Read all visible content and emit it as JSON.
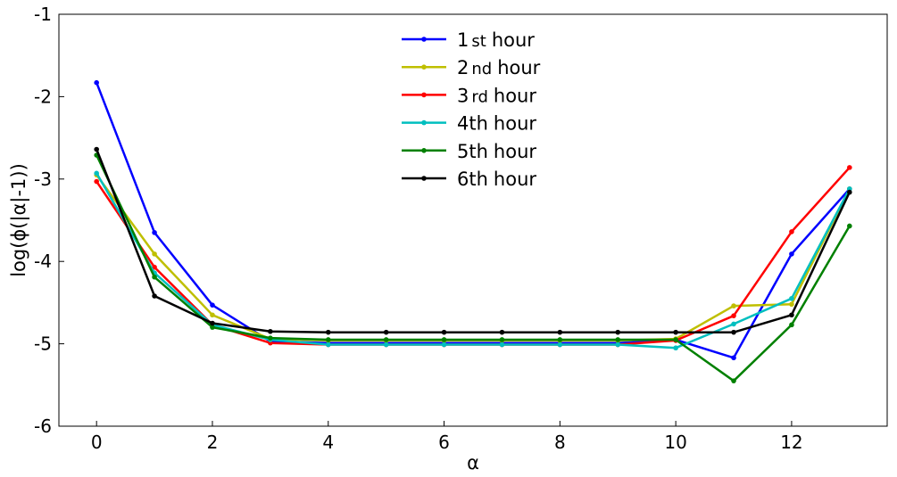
{
  "chart_data": {
    "type": "line",
    "title": "",
    "xlabel": "α",
    "ylabel": "log(ϕ(|α|-1))",
    "xlim": [
      -0.65,
      13.65
    ],
    "ylim": [
      -6,
      -1
    ],
    "xticks": [
      0,
      2,
      4,
      6,
      8,
      10,
      12
    ],
    "yticks": [
      -6,
      -5,
      -4,
      -3,
      -2,
      -1
    ],
    "grid": false,
    "legend_position": "top-center",
    "x": [
      0,
      1,
      2,
      3,
      4,
      5,
      6,
      7,
      8,
      9,
      10,
      11,
      12,
      13
    ],
    "series": [
      {
        "name": "1st hour",
        "label_main": "1",
        "label_sup": "st",
        "label_rest": "hour",
        "color": "#0000ff",
        "values": [
          -1.83,
          -3.65,
          -4.53,
          -4.97,
          -4.99,
          -4.99,
          -4.99,
          -4.99,
          -4.99,
          -4.99,
          -4.95,
          -5.17,
          -3.91,
          -3.12
        ]
      },
      {
        "name": "2nd hour",
        "label_main": "2",
        "label_sup": "nd",
        "label_rest": "hour",
        "color": "#bfbf00",
        "values": [
          -2.95,
          -3.91,
          -4.65,
          -4.94,
          -4.96,
          -4.96,
          -4.96,
          -4.96,
          -4.96,
          -4.96,
          -4.94,
          -4.54,
          -4.52,
          -3.12
        ]
      },
      {
        "name": "3rd hour",
        "label_main": "3",
        "label_sup": "rd",
        "label_rest": "hour",
        "color": "#ff0000",
        "values": [
          -3.03,
          -4.07,
          -4.77,
          -4.99,
          -5.01,
          -5.01,
          -5.01,
          -5.01,
          -5.01,
          -5.01,
          -4.96,
          -4.66,
          -3.64,
          -2.86
        ]
      },
      {
        "name": "4th hour",
        "label_main": "4th",
        "label_sup": "",
        "label_rest": "hour",
        "color": "#00bfbf",
        "values": [
          -2.93,
          -4.14,
          -4.77,
          -4.95,
          -5.01,
          -5.01,
          -5.01,
          -5.01,
          -5.01,
          -5.01,
          -5.05,
          -4.76,
          -4.45,
          -3.12
        ]
      },
      {
        "name": "5th hour",
        "label_main": "5th",
        "label_sup": "",
        "label_rest": "hour",
        "color": "#008000",
        "values": [
          -2.71,
          -4.19,
          -4.8,
          -4.93,
          -4.95,
          -4.95,
          -4.95,
          -4.95,
          -4.95,
          -4.95,
          -4.95,
          -5.45,
          -4.77,
          -3.57
        ]
      },
      {
        "name": "6th hour",
        "label_main": "6th",
        "label_sup": "",
        "label_rest": "hour",
        "color": "#000000",
        "values": [
          -2.64,
          -4.42,
          -4.75,
          -4.85,
          -4.86,
          -4.86,
          -4.86,
          -4.86,
          -4.86,
          -4.86,
          -4.86,
          -4.86,
          -4.65,
          -3.16
        ]
      }
    ]
  }
}
